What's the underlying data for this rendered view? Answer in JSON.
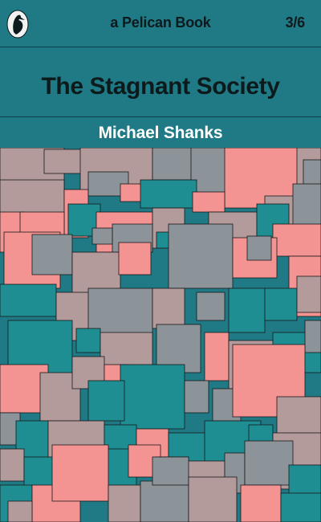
{
  "header": {
    "publisher_label": "a Pelican Book",
    "price": "3/6",
    "logo_icon": "pelican-logo-icon"
  },
  "book": {
    "title": "The Stagnant Society",
    "author": "Michael Shanks"
  },
  "artwork": {
    "description_icon": "overlapping-squares-pattern",
    "palette": {
      "teal": "#1f8e93",
      "grey": "#8c9399",
      "pink": "#f39493",
      "mauve": "#b39a9b",
      "outline": "#1a1a1a"
    }
  },
  "colors": {
    "band": "#1f7a86",
    "title_text": "#0c1a1c",
    "author_text": "#ffffff"
  }
}
